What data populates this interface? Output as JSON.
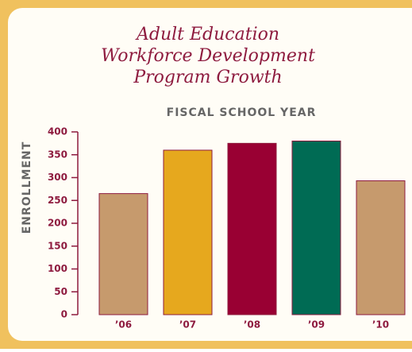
{
  "chart_data": {
    "type": "bar",
    "title": [
      "Adult Education",
      "Workforce Development",
      "Program Growth"
    ],
    "x_label": "FISCAL SCHOOL YEAR",
    "y_label": "ENROLLMENT",
    "categories": [
      "’06",
      "’07",
      "’08",
      "’09",
      "’10"
    ],
    "values": [
      265,
      360,
      375,
      380,
      293
    ],
    "colors": [
      "#c69a6d",
      "#e6a81e",
      "#990033",
      "#006b54",
      "#c69a6d"
    ],
    "ylim": [
      0,
      400
    ],
    "yticks": [
      0,
      50,
      100,
      150,
      200,
      250,
      300,
      350,
      400
    ],
    "grid": false
  }
}
